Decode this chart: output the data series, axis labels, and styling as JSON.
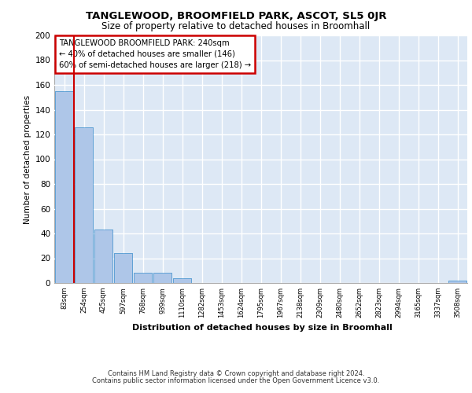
{
  "title": "TANGLEWOOD, BROOMFIELD PARK, ASCOT, SL5 0JR",
  "subtitle": "Size of property relative to detached houses in Broomhall",
  "xlabel": "Distribution of detached houses by size in Broomhall",
  "ylabel": "Number of detached properties",
  "categories": [
    "83sqm",
    "254sqm",
    "425sqm",
    "597sqm",
    "768sqm",
    "939sqm",
    "1110sqm",
    "1282sqm",
    "1453sqm",
    "1624sqm",
    "1795sqm",
    "1967sqm",
    "2138sqm",
    "2309sqm",
    "2480sqm",
    "2652sqm",
    "2823sqm",
    "2994sqm",
    "3165sqm",
    "3337sqm",
    "3508sqm"
  ],
  "values": [
    155,
    126,
    43,
    24,
    8,
    8,
    4,
    0,
    0,
    0,
    0,
    0,
    0,
    0,
    0,
    0,
    0,
    0,
    0,
    0,
    2
  ],
  "bar_color": "#aec6e8",
  "bar_edge_color": "#5a9fd4",
  "background_color": "#dde8f5",
  "grid_color": "#ffffff",
  "annotation_text": "TANGLEWOOD BROOMFIELD PARK: 240sqm\n← 40% of detached houses are smaller (146)\n60% of semi-detached houses are larger (218) →",
  "annotation_box_color": "#ffffff",
  "annotation_border_color": "#cc0000",
  "ylim": [
    0,
    200
  ],
  "yticks": [
    0,
    20,
    40,
    60,
    80,
    100,
    120,
    140,
    160,
    180,
    200
  ],
  "footer_line1": "Contains HM Land Registry data © Crown copyright and database right 2024.",
  "footer_line2": "Contains public sector information licensed under the Open Government Licence v3.0."
}
